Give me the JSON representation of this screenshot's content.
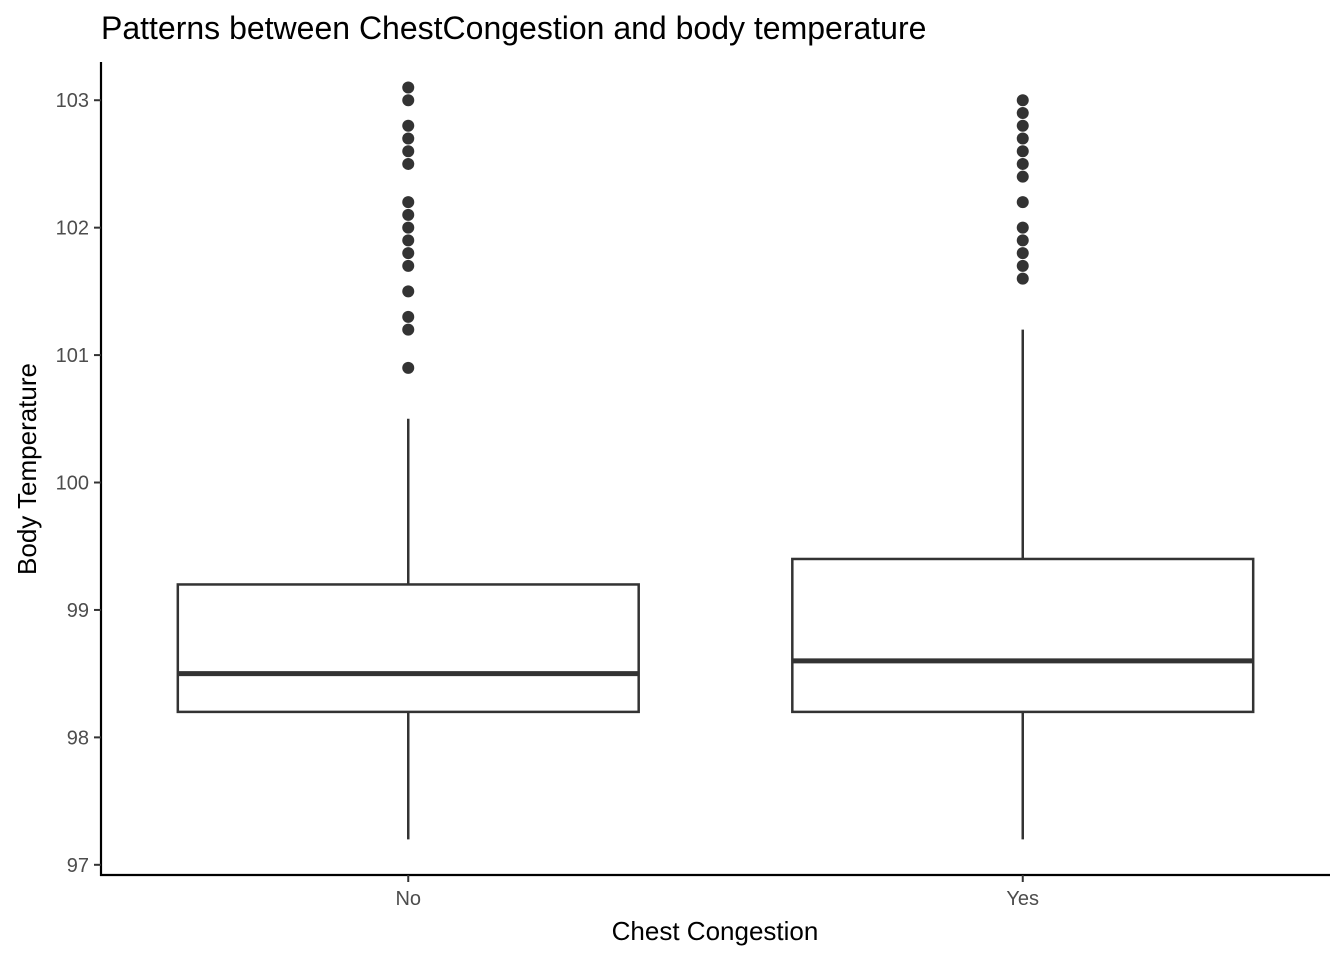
{
  "chart_data": {
    "type": "box",
    "title": "Patterns between ChestCongestion and body temperature",
    "xlabel": "Chest Congestion",
    "ylabel": "Body Temperature",
    "ylim": [
      96.92,
      103.3
    ],
    "yticks": [
      97,
      98,
      99,
      100,
      101,
      102,
      103
    ],
    "grid": false,
    "categories": [
      "No",
      "Yes"
    ],
    "boxes": [
      {
        "category": "No",
        "whisker_low": 97.2,
        "q1": 98.2,
        "median": 98.5,
        "q3": 99.2,
        "whisker_high": 100.5,
        "outliers": [
          100.9,
          101.2,
          101.3,
          101.5,
          101.7,
          101.8,
          101.9,
          102.0,
          102.1,
          102.2,
          102.5,
          102.6,
          102.7,
          102.8,
          103.0,
          103.1
        ]
      },
      {
        "category": "Yes",
        "whisker_low": 97.2,
        "q1": 98.2,
        "median": 98.6,
        "q3": 99.4,
        "whisker_high": 101.2,
        "outliers": [
          101.6,
          101.7,
          101.8,
          101.9,
          102.0,
          102.2,
          102.4,
          102.5,
          102.6,
          102.7,
          102.8,
          102.9,
          103.0
        ]
      }
    ]
  }
}
